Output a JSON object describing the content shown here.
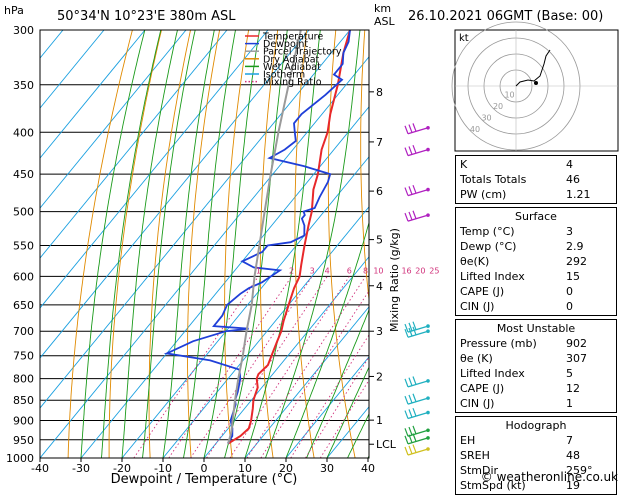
{
  "header": {
    "location": "50°34'N  10°23'E  380m  ASL",
    "datetime": "26.10.2021  06GMT  (Base: 00)",
    "hpa_label": "hPa",
    "km_label": "km",
    "asl_label": "ASL",
    "footer": "© weatheronline.co.uk"
  },
  "legend": [
    {
      "label": "Temperature",
      "color": "#e8282a"
    },
    {
      "label": "Dewpoint",
      "color": "#1f3fd8"
    },
    {
      "label": "Parcel Trajectory",
      "color": "#9a9a9a"
    },
    {
      "label": "Dry Adiabat",
      "color": "#e08a00"
    },
    {
      "label": "Wet Adiabat",
      "color": "#1a9a1a"
    },
    {
      "label": "Isotherm",
      "color": "#1aa0e0"
    },
    {
      "label": "Mixing Ratio",
      "color": "#d0307a"
    }
  ],
  "chart_data": {
    "type": "skewt",
    "xlabel": "Dewpoint / Temperature (°C)",
    "y2label": "Mixing Ratio (g/kg)",
    "x_ticks": [
      -40,
      -30,
      -20,
      -10,
      0,
      10,
      20,
      30,
      40
    ],
    "x_range": [
      -40,
      40
    ],
    "pressure_levels": [
      300,
      350,
      400,
      450,
      500,
      550,
      600,
      650,
      700,
      750,
      800,
      850,
      900,
      950,
      1000
    ],
    "km_ticks": [
      {
        "label": "8",
        "p": 357
      },
      {
        "label": "7",
        "p": 411
      },
      {
        "label": "6",
        "p": 472
      },
      {
        "label": "5",
        "p": 541
      },
      {
        "label": "4",
        "p": 616
      },
      {
        "label": "3",
        "p": 700
      },
      {
        "label": "2",
        "p": 795
      },
      {
        "label": "1",
        "p": 899
      },
      {
        "label": "LCL",
        "p": 962
      }
    ],
    "mixing_ratio_labels": [
      "1",
      "2",
      "3",
      "4",
      "6",
      "8",
      "10",
      "16",
      "20",
      "25"
    ],
    "mixing_ratio_values": [
      1,
      2,
      3,
      4,
      6,
      8,
      10,
      16,
      20,
      25
    ],
    "series": [
      {
        "name": "Temperature",
        "points": [
          [
            960,
            3
          ],
          [
            940,
            4.5
          ],
          [
            920,
            5
          ],
          [
            900,
            4
          ],
          [
            870,
            2
          ],
          [
            850,
            0.5
          ],
          [
            820,
            -1
          ],
          [
            800,
            -3
          ],
          [
            790,
            -3.5
          ],
          [
            770,
            -3
          ],
          [
            750,
            -4
          ],
          [
            720,
            -5.5
          ],
          [
            700,
            -6.5
          ],
          [
            680,
            -8
          ],
          [
            650,
            -10
          ],
          [
            620,
            -12
          ],
          [
            600,
            -13
          ],
          [
            580,
            -15
          ],
          [
            550,
            -18
          ],
          [
            520,
            -21
          ],
          [
            500,
            -23
          ],
          [
            470,
            -27
          ],
          [
            450,
            -29
          ],
          [
            420,
            -33
          ],
          [
            400,
            -35
          ],
          [
            380,
            -38
          ],
          [
            350,
            -42
          ],
          [
            320,
            -47
          ],
          [
            300,
            -50
          ]
        ]
      },
      {
        "name": "Dewpoint",
        "points": [
          [
            960,
            2.9
          ],
          [
            940,
            2.5
          ],
          [
            920,
            1
          ],
          [
            900,
            -1
          ],
          [
            880,
            -2
          ],
          [
            860,
            -3
          ],
          [
            850,
            -4
          ],
          [
            830,
            -5
          ],
          [
            800,
            -7
          ],
          [
            780,
            -9
          ],
          [
            760,
            -18
          ],
          [
            745,
            -30
          ],
          [
            720,
            -26
          ],
          [
            700,
            -20
          ],
          [
            695,
            -15
          ],
          [
            690,
            -24
          ],
          [
            670,
            -24
          ],
          [
            650,
            -25
          ],
          [
            630,
            -24
          ],
          [
            620,
            -23
          ],
          [
            610,
            -21
          ],
          [
            600,
            -20
          ],
          [
            590,
            -19
          ],
          [
            585,
            -26
          ],
          [
            575,
            -30
          ],
          [
            560,
            -27
          ],
          [
            550,
            -27
          ],
          [
            545,
            -22
          ],
          [
            535,
            -20
          ],
          [
            520,
            -22
          ],
          [
            510,
            -24
          ],
          [
            505,
            -24
          ],
          [
            500,
            -25
          ],
          [
            495,
            -23
          ],
          [
            480,
            -24
          ],
          [
            460,
            -25
          ],
          [
            450,
            -26
          ],
          [
            440,
            -34
          ],
          [
            430,
            -44
          ],
          [
            420,
            -42
          ],
          [
            410,
            -41
          ],
          [
            400,
            -43
          ],
          [
            390,
            -45
          ],
          [
            380,
            -45
          ],
          [
            360,
            -43
          ],
          [
            345,
            -42
          ],
          [
            340,
            -45
          ],
          [
            330,
            -45
          ],
          [
            320,
            -47
          ],
          [
            310,
            -48
          ],
          [
            300,
            -50
          ]
        ]
      },
      {
        "name": "Parcel Trajectory",
        "points": [
          [
            960,
            3
          ],
          [
            930,
            1.5
          ],
          [
            900,
            -0.5
          ],
          [
            850,
            -4
          ],
          [
            800,
            -7.5
          ],
          [
            750,
            -11
          ],
          [
            700,
            -15
          ],
          [
            650,
            -19
          ],
          [
            600,
            -24
          ],
          [
            550,
            -29
          ],
          [
            500,
            -34.5
          ],
          [
            450,
            -40.5
          ],
          [
            400,
            -47
          ],
          [
            350,
            -54
          ],
          [
            300,
            -62
          ]
        ]
      }
    ]
  },
  "hodograph": {
    "label": "kt",
    "ring_labels": [
      "10",
      "20",
      "30",
      "40"
    ]
  },
  "indices": {
    "general": [
      {
        "label": "K",
        "value": "4"
      },
      {
        "label": "Totals Totals",
        "value": "46"
      },
      {
        "label": "PW (cm)",
        "value": "1.21"
      }
    ],
    "surface": {
      "title": "Surface",
      "rows": [
        {
          "label": "Temp (°C)",
          "value": "3"
        },
        {
          "label": "Dewp (°C)",
          "value": "2.9"
        },
        {
          "label": "θe(K)",
          "value": "292"
        },
        {
          "label": "Lifted Index",
          "value": "15"
        },
        {
          "label": "CAPE (J)",
          "value": "0"
        },
        {
          "label": "CIN (J)",
          "value": "0"
        }
      ]
    },
    "most_unstable": {
      "title": "Most Unstable",
      "rows": [
        {
          "label": "Pressure (mb)",
          "value": "902"
        },
        {
          "label": "θe (K)",
          "value": "307"
        },
        {
          "label": "Lifted Index",
          "value": "5"
        },
        {
          "label": "CAPE (J)",
          "value": "12"
        },
        {
          "label": "CIN (J)",
          "value": "1"
        }
      ]
    },
    "hodograph": {
      "title": "Hodograph",
      "rows": [
        {
          "label": "EH",
          "value": "7"
        },
        {
          "label": "SREH",
          "value": "48"
        },
        {
          "label": "StmDir",
          "value": "259°"
        },
        {
          "label": "StmSpd (kt)",
          "value": "19"
        }
      ]
    }
  }
}
